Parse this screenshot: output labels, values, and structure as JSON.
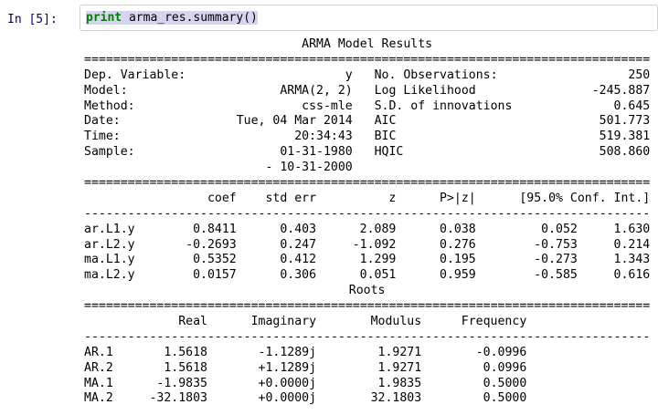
{
  "cell": {
    "prompt": "In [5]:",
    "code_keyword": "print",
    "code_rest": " arma_res.summary()"
  },
  "colors": {
    "prompt_blue": "#000080",
    "keyword_green": "#008000",
    "selection_highlight": "#d7d4f0",
    "cell_border": "#cfcfd4"
  },
  "summary": {
    "title": "ARMA Model Results",
    "divider_double": "==============================================================================",
    "divider_single": "------------------------------------------------------------------------------",
    "info_rows": [
      {
        "l": "Dep. Variable:",
        "lv": "y",
        "r": "No. Observations:",
        "rv": "250"
      },
      {
        "l": "Model:",
        "lv": "ARMA(2, 2)",
        "r": "Log Likelihood",
        "rv": "-245.887"
      },
      {
        "l": "Method:",
        "lv": "css-mle",
        "r": "S.D. of innovations",
        "rv": "0.645"
      },
      {
        "l": "Date:",
        "lv": "Tue, 04 Mar 2014",
        "r": "AIC",
        "rv": "501.773"
      },
      {
        "l": "Time:",
        "lv": "20:34:43",
        "r": "BIC",
        "rv": "519.381"
      },
      {
        "l": "Sample:",
        "lv": "01-31-1980",
        "r": "HQIC",
        "rv": "508.860"
      },
      {
        "l": "",
        "lv": "- 10-31-2000",
        "r": "",
        "rv": ""
      }
    ],
    "coef_table": {
      "headers": [
        "coef",
        "std err",
        "z",
        "P>|z|",
        "[95.0% Conf. Int.]"
      ],
      "rows": [
        {
          "name": "ar.L1.y",
          "coef": "0.8411",
          "std_err": "0.403",
          "z": "2.089",
          "p": "0.038",
          "ci_low": "0.052",
          "ci_high": "1.630"
        },
        {
          "name": "ar.L2.y",
          "coef": "-0.2693",
          "std_err": "0.247",
          "z": "-1.092",
          "p": "0.276",
          "ci_low": "-0.753",
          "ci_high": "0.214"
        },
        {
          "name": "ma.L1.y",
          "coef": "0.5352",
          "std_err": "0.412",
          "z": "1.299",
          "p": "0.195",
          "ci_low": "-0.273",
          "ci_high": "1.343"
        },
        {
          "name": "ma.L2.y",
          "coef": "0.0157",
          "std_err": "0.306",
          "z": "0.051",
          "p": "0.959",
          "ci_low": "-0.585",
          "ci_high": "0.616"
        }
      ]
    },
    "roots_title": "Roots",
    "roots_table": {
      "headers": [
        "Real",
        "Imaginary",
        "Modulus",
        "Frequency"
      ],
      "rows": [
        {
          "name": "AR.1",
          "real": "1.5618",
          "imag": "-1.1289j",
          "mod": "1.9271",
          "freq": "-0.0996"
        },
        {
          "name": "AR.2",
          "real": "1.5618",
          "imag": "+1.1289j",
          "mod": "1.9271",
          "freq": "0.0996"
        },
        {
          "name": "MA.1",
          "real": "-1.9835",
          "imag": "+0.0000j",
          "mod": "1.9835",
          "freq": "0.5000"
        },
        {
          "name": "MA.2",
          "real": "-32.1803",
          "imag": "+0.0000j",
          "mod": "32.1803",
          "freq": "0.5000"
        }
      ]
    }
  }
}
